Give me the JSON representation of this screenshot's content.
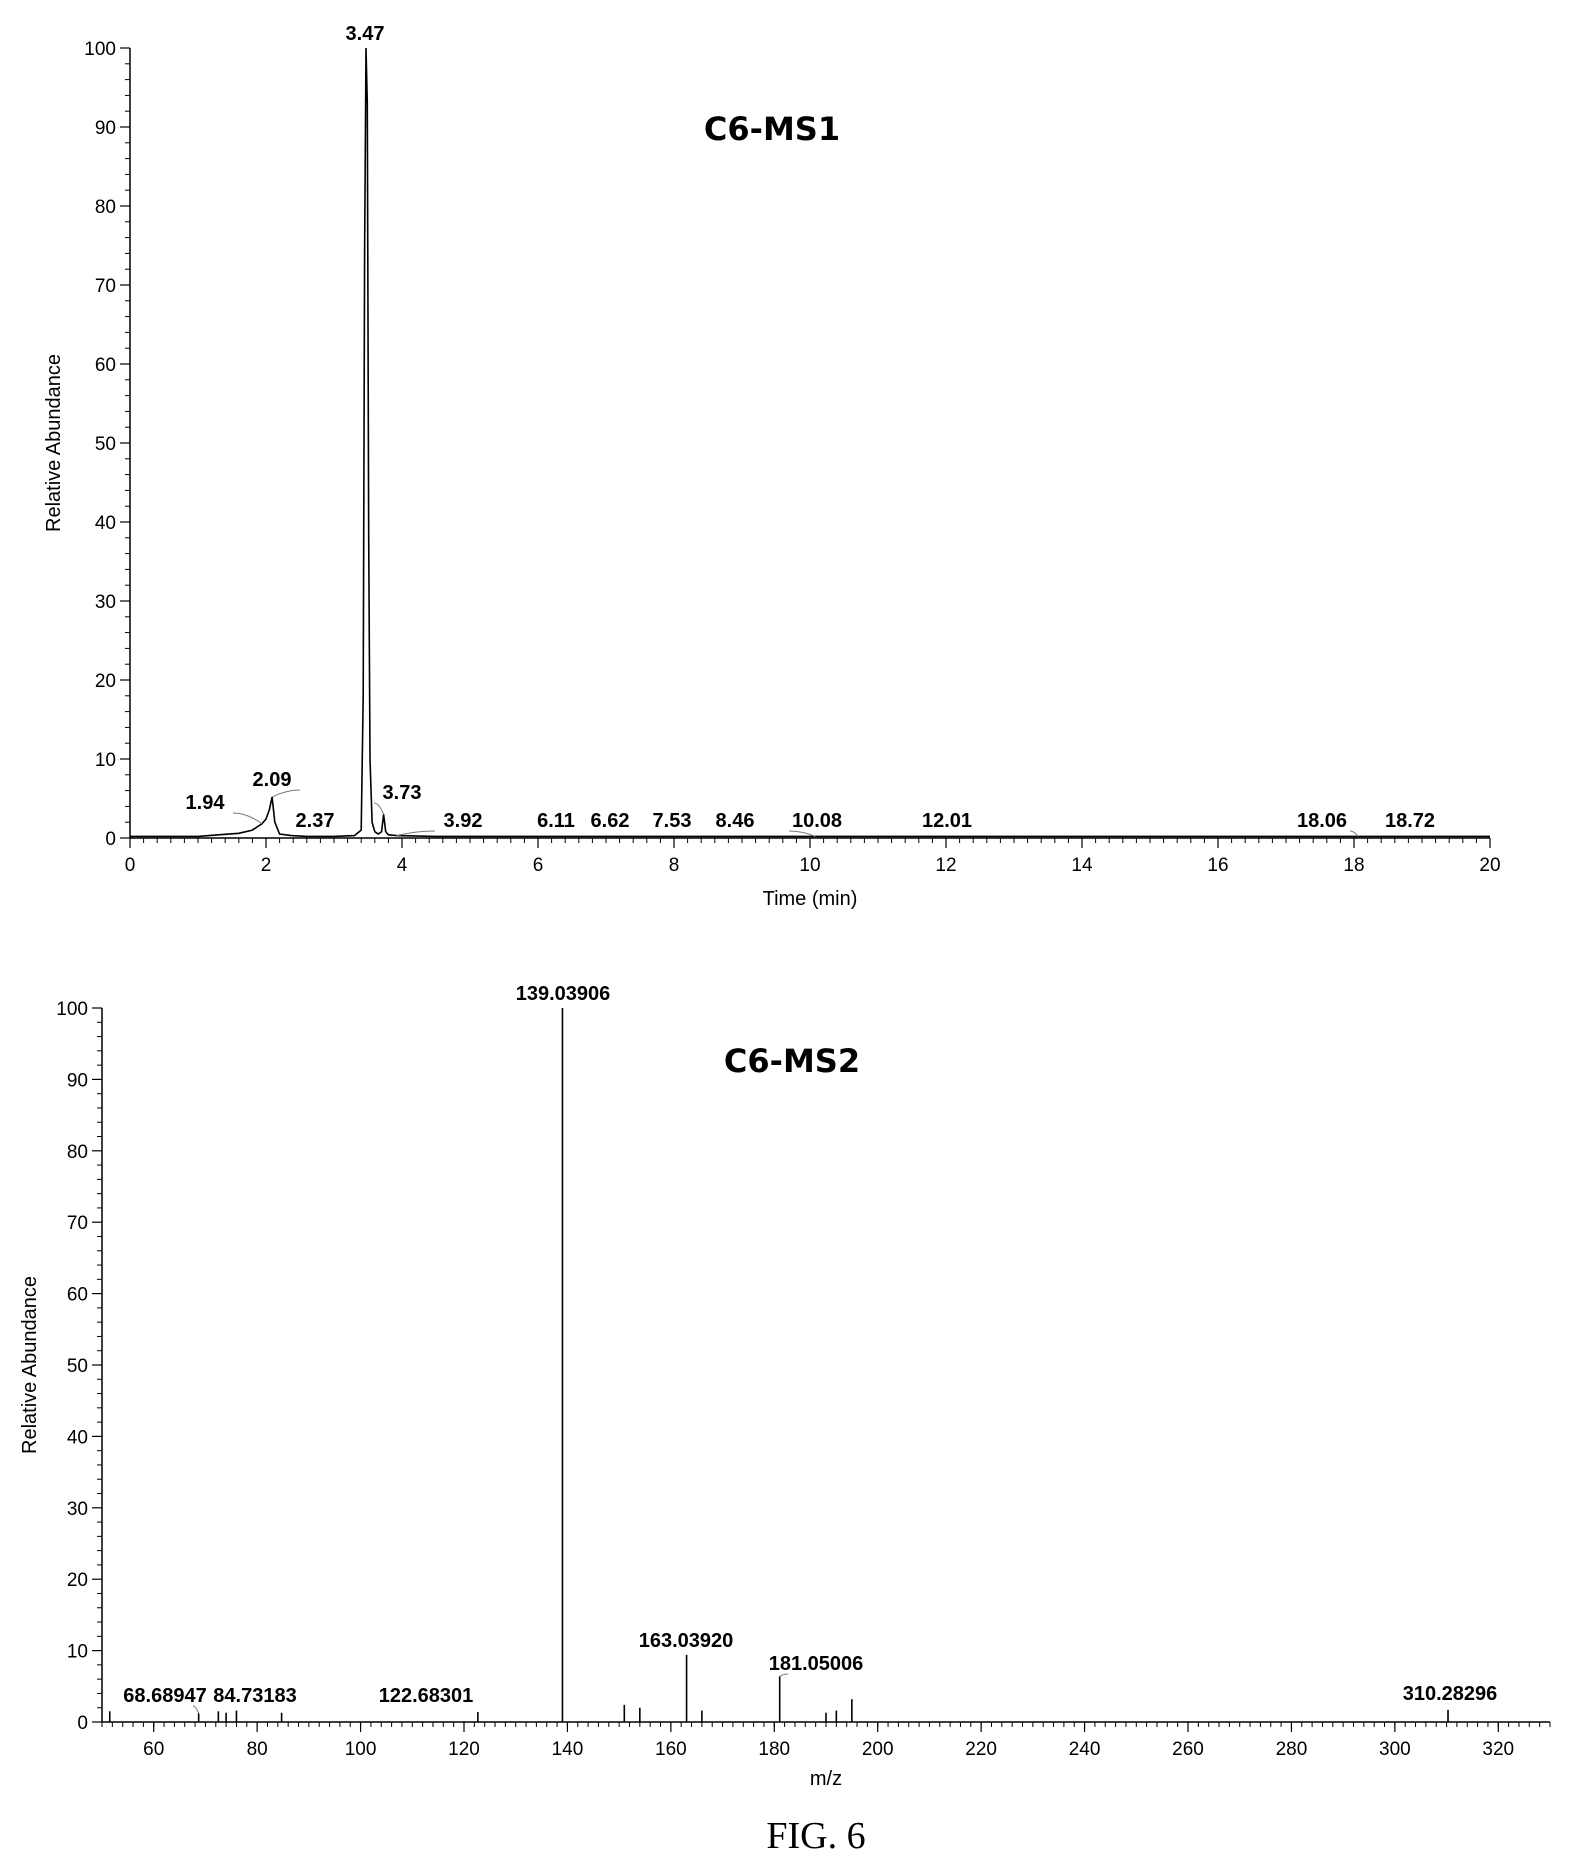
{
  "figure_caption": "FIG. 6",
  "chart_data": [
    {
      "type": "line",
      "title": "C6-MS1",
      "xlabel": "Time (min)",
      "ylabel": "Relative Abundance",
      "xlim": [
        0,
        20
      ],
      "ylim": [
        0,
        100
      ],
      "xticks": [
        0,
        2,
        4,
        6,
        8,
        10,
        12,
        14,
        16,
        18,
        20
      ],
      "yticks": [
        0,
        10,
        20,
        30,
        40,
        50,
        60,
        70,
        80,
        90,
        100
      ],
      "series": [
        {
          "x": [
            0,
            1.0,
            1.3,
            1.6,
            1.8,
            1.94,
            2.0,
            2.05,
            2.09,
            2.13,
            2.2,
            2.37,
            2.6,
            3.0,
            3.3,
            3.4,
            3.43,
            3.45,
            3.47,
            3.49,
            3.51,
            3.53,
            3.56,
            3.6,
            3.65,
            3.7,
            3.73,
            3.76,
            3.8,
            3.92,
            4.5,
            6.11,
            6.62,
            7.53,
            8.46,
            10.08,
            12.01,
            18.06,
            18.72,
            20
          ],
          "y": [
            0.2,
            0.2,
            0.4,
            0.6,
            1.0,
            1.8,
            2.4,
            3.6,
            5.2,
            2.0,
            0.5,
            0.3,
            0.2,
            0.2,
            0.3,
            1.0,
            18,
            74,
            100,
            93,
            38,
            10,
            2,
            0.8,
            0.5,
            0.8,
            3.0,
            0.8,
            0.4,
            0.3,
            0.2,
            0.2,
            0.2,
            0.2,
            0.2,
            0.2,
            0.2,
            0.2,
            0.2,
            0.2
          ]
        }
      ],
      "peak_labels": [
        {
          "x": 1.94,
          "y": 1.8,
          "text": "1.94"
        },
        {
          "x": 2.09,
          "y": 5.2,
          "text": "2.09"
        },
        {
          "x": 2.37,
          "y": 0.3,
          "text": "2.37"
        },
        {
          "x": 3.47,
          "y": 100,
          "text": "3.47"
        },
        {
          "x": 3.73,
          "y": 3.0,
          "text": "3.73"
        },
        {
          "x": 3.92,
          "y": 0.3,
          "text": "3.92"
        },
        {
          "x": 6.11,
          "y": 0.2,
          "text": "6.11"
        },
        {
          "x": 6.62,
          "y": 0.2,
          "text": "6.62"
        },
        {
          "x": 7.53,
          "y": 0.2,
          "text": "7.53"
        },
        {
          "x": 8.46,
          "y": 0.2,
          "text": "8.46"
        },
        {
          "x": 10.08,
          "y": 0.2,
          "text": "10.08"
        },
        {
          "x": 12.01,
          "y": 0.2,
          "text": "12.01"
        },
        {
          "x": 18.06,
          "y": 0.2,
          "text": "18.06"
        },
        {
          "x": 18.72,
          "y": 0.2,
          "text": "18.72"
        }
      ]
    },
    {
      "type": "bar",
      "title": "C6-MS2",
      "xlabel": "m/z",
      "ylabel": "Relative Abundance",
      "xlim": [
        50,
        330
      ],
      "ylim": [
        0,
        100
      ],
      "xticks": [
        60,
        80,
        100,
        120,
        140,
        160,
        180,
        200,
        220,
        240,
        260,
        280,
        300,
        320
      ],
      "yticks": [
        0,
        10,
        20,
        30,
        40,
        50,
        60,
        70,
        80,
        90,
        100
      ],
      "peaks": [
        {
          "mz": 51.5,
          "intensity": 1.5
        },
        {
          "mz": 68.69,
          "intensity": 1.2
        },
        {
          "mz": 72.5,
          "intensity": 1.5
        },
        {
          "mz": 74.0,
          "intensity": 1.3
        },
        {
          "mz": 76.0,
          "intensity": 1.6
        },
        {
          "mz": 84.73,
          "intensity": 1.3
        },
        {
          "mz": 122.68,
          "intensity": 1.4
        },
        {
          "mz": 139.04,
          "intensity": 100
        },
        {
          "mz": 151.0,
          "intensity": 2.4
        },
        {
          "mz": 154.0,
          "intensity": 2.0
        },
        {
          "mz": 163.04,
          "intensity": 9.4
        },
        {
          "mz": 166.0,
          "intensity": 1.6
        },
        {
          "mz": 181.05,
          "intensity": 6.4
        },
        {
          "mz": 190.0,
          "intensity": 1.3
        },
        {
          "mz": 192.0,
          "intensity": 1.6
        },
        {
          "mz": 195.0,
          "intensity": 3.2
        },
        {
          "mz": 310.28,
          "intensity": 1.7
        }
      ],
      "peak_labels": [
        {
          "x": 68.69,
          "y": 1.2,
          "text": "68.68947"
        },
        {
          "x": 84.73,
          "y": 1.3,
          "text": "84.73183"
        },
        {
          "x": 122.68,
          "y": 1.4,
          "text": "122.68301"
        },
        {
          "x": 139.04,
          "y": 100,
          "text": "139.03906"
        },
        {
          "x": 163.04,
          "y": 9.4,
          "text": "163.03920"
        },
        {
          "x": 181.05,
          "y": 6.4,
          "text": "181.05006"
        },
        {
          "x": 310.28,
          "y": 1.7,
          "text": "310.28296"
        }
      ]
    }
  ]
}
